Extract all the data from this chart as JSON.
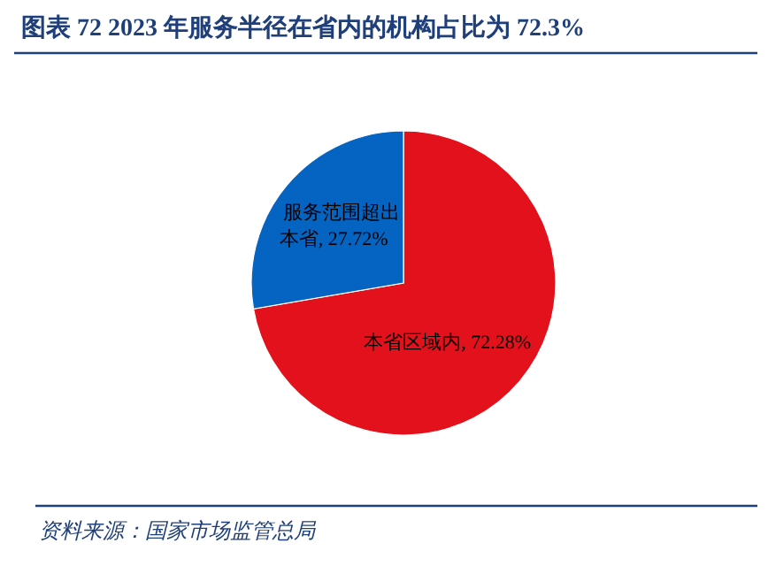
{
  "chart_data": {
    "type": "pie",
    "title": "图表 72   2023 年服务半径在省内的机构占比为 72.3%",
    "categories": [
      "本省区域内",
      "服务范围超出本省"
    ],
    "values": [
      72.28,
      27.72
    ],
    "value_labels": [
      "72.28%",
      "27.72%"
    ],
    "colors": [
      "#e3111b",
      "#0563c1"
    ],
    "annotations": [
      "资料来源：国家市场监管总局"
    ]
  }
}
